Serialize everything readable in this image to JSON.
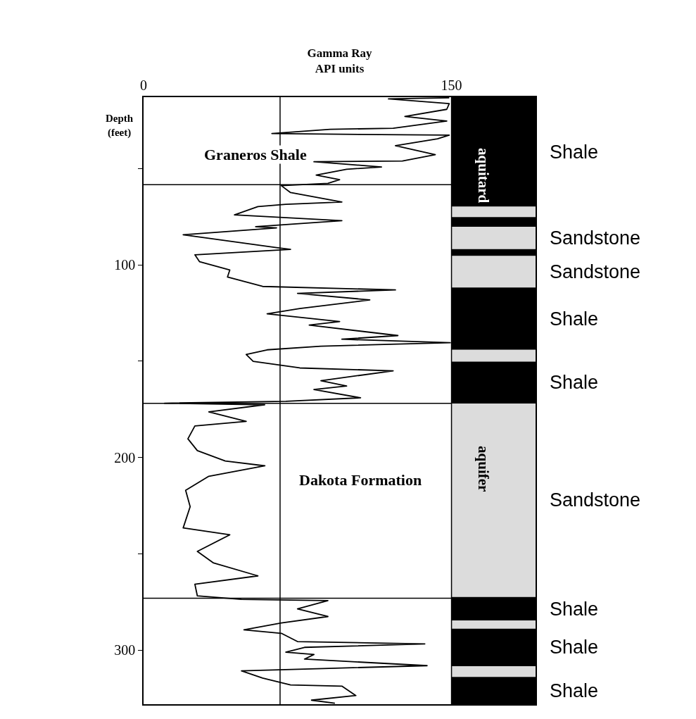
{
  "chart_data": {
    "type": "line",
    "xlabel": "Gamma Ray\nAPI units",
    "ylabel": "Depth\n(feet)",
    "xlim": [
      0,
      191
    ],
    "xticks": [
      0,
      150
    ],
    "ylim": [
      328,
      13
    ],
    "yticks": [
      {
        "value": 50,
        "label": null
      },
      100,
      {
        "value": 150,
        "label": null
      },
      200,
      {
        "value": 250,
        "label": null
      },
      300
    ],
    "grid": false,
    "marker": "none",
    "line_style": "solid",
    "series": [
      {
        "color": "#000000",
        "x": [
          148.9,
          119.3,
          148.9,
          147.7,
          127.3,
          147.7,
          121.6,
          90.9,
          62.5,
          148.9,
          143.2,
          122.7,
          142.1,
          126.1,
          83,
          115.9,
          98.9,
          84.1,
          95.5,
          89.8,
          67.1,
          71.6,
          96.6,
          69.3,
          55.7,
          44.3,
          96.6,
          54.6,
          64.8,
          19.3,
          64.8,
          71.6,
          25,
          27.3,
          42,
          40.9,
          58,
          122.7,
          75,
          110.2,
          76.1,
          60.2,
          95.5,
          80.7,
          123.9,
          96.6,
          149.4,
          86.4,
          60.2,
          50,
          53.4,
          76.1,
          121.6,
          86.4,
          98.9,
          83,
          105.7,
          69.3,
          10.2,
          59,
          31.8,
          50,
          25,
          21.6,
          26.2,
          39.8,
          59.1,
          31.8,
          20.5,
          22.7,
          19.3,
          42,
          26.2,
          34.1,
          55.7,
          25,
          26.2,
          47.7,
          89.8,
          75,
          89.8,
          67.1,
          48.9,
          67.1,
          75,
          137,
          78.4,
          69.3,
          83,
          78.4,
          138.1,
          87.5,
          47.7,
          58,
          71.6,
          96.6,
          103.4,
          81.8,
          93.2
        ],
        "values": [
          13.3,
          13.9,
          16.3,
          19.3,
          23,
          25.4,
          29.1,
          29.7,
          31.9,
          32.7,
          34.6,
          38.2,
          42.8,
          46.1,
          46.5,
          49.2,
          50.4,
          53.4,
          55.8,
          57.7,
          58.9,
          62.5,
          67.4,
          68.6,
          69.8,
          74.1,
          77.1,
          80.2,
          80.8,
          84.4,
          91.1,
          92,
          94.8,
          98.4,
          102.7,
          106.3,
          111.2,
          113,
          114.8,
          118.2,
          122.7,
          125.4,
          129.4,
          131.3,
          136.7,
          138.6,
          140.4,
          142.2,
          144.1,
          146.5,
          150.1,
          153.5,
          155,
          160.1,
          162.9,
          164.7,
          169,
          170.8,
          171.8,
          172.6,
          176.3,
          181.2,
          183.6,
          190.3,
          196.4,
          201.8,
          204.3,
          209.7,
          217,
          225.5,
          236.5,
          240.1,
          248.7,
          254.7,
          261.4,
          265.7,
          271.8,
          273.6,
          274.2,
          278.5,
          282.5,
          285.8,
          289.4,
          291.2,
          295.5,
          296.7,
          298.5,
          301,
          302.2,
          304.6,
          308,
          309.5,
          310.7,
          314.4,
          318,
          318.6,
          323.5,
          325.9,
          327.5
        ]
      }
    ],
    "ref_lines": [
      {
        "axis": "x",
        "value": 66.5,
        "color": "#000000"
      },
      {
        "axis": "x",
        "value": 150,
        "color": "#000000"
      },
      {
        "axis": "y",
        "value": 58.4,
        "color": "#000000"
      },
      {
        "axis": "y",
        "value": 171.9,
        "color": "#000000"
      },
      {
        "axis": "y",
        "value": 273,
        "color": "#000000"
      }
    ],
    "bands": [
      {
        "axis": "y",
        "from": 13,
        "to": 69.8,
        "label": "Shale",
        "color": "#000000"
      },
      {
        "axis": "y",
        "from": 69.8,
        "to": 75.2,
        "color": "#dcdcdc"
      },
      {
        "axis": "y",
        "from": 75.2,
        "to": 80.2,
        "color": "#000000"
      },
      {
        "axis": "y",
        "from": 80.2,
        "to": 91.8,
        "label": "Sandstone",
        "color": "#dcdcdc"
      },
      {
        "axis": "y",
        "from": 91.8,
        "to": 95.4,
        "color": "#000000"
      },
      {
        "axis": "y",
        "from": 95.4,
        "to": 111.8,
        "label": "Sandstone",
        "color": "#dcdcdc"
      },
      {
        "axis": "y",
        "from": 111.8,
        "to": 144.1,
        "label": "Shale",
        "color": "#000000"
      },
      {
        "axis": "y",
        "from": 144.1,
        "to": 150.2,
        "color": "#dcdcdc"
      },
      {
        "axis": "y",
        "from": 150.2,
        "to": 172,
        "label": "Shale",
        "color": "#000000"
      },
      {
        "axis": "y",
        "from": 172,
        "to": 272.4,
        "label": "Sandstone",
        "color": "#dcdcdc"
      },
      {
        "axis": "y",
        "from": 272.4,
        "to": 284.6,
        "label": "Shale",
        "color": "#000000"
      },
      {
        "axis": "y",
        "from": 284.6,
        "to": 288.8,
        "color": "#dcdcdc"
      },
      {
        "axis": "y",
        "from": 288.8,
        "to": 308.3,
        "label": "Shale",
        "color": "#000000"
      },
      {
        "axis": "y",
        "from": 308.3,
        "to": 313.8,
        "color": "#dcdcdc"
      },
      {
        "axis": "y",
        "from": 313.8,
        "to": 328,
        "label": "Shale",
        "color": "#000000"
      }
    ],
    "annotations": [
      "Graneros Shale",
      "Dakota Formation",
      "aquitard",
      "aquifer"
    ]
  }
}
